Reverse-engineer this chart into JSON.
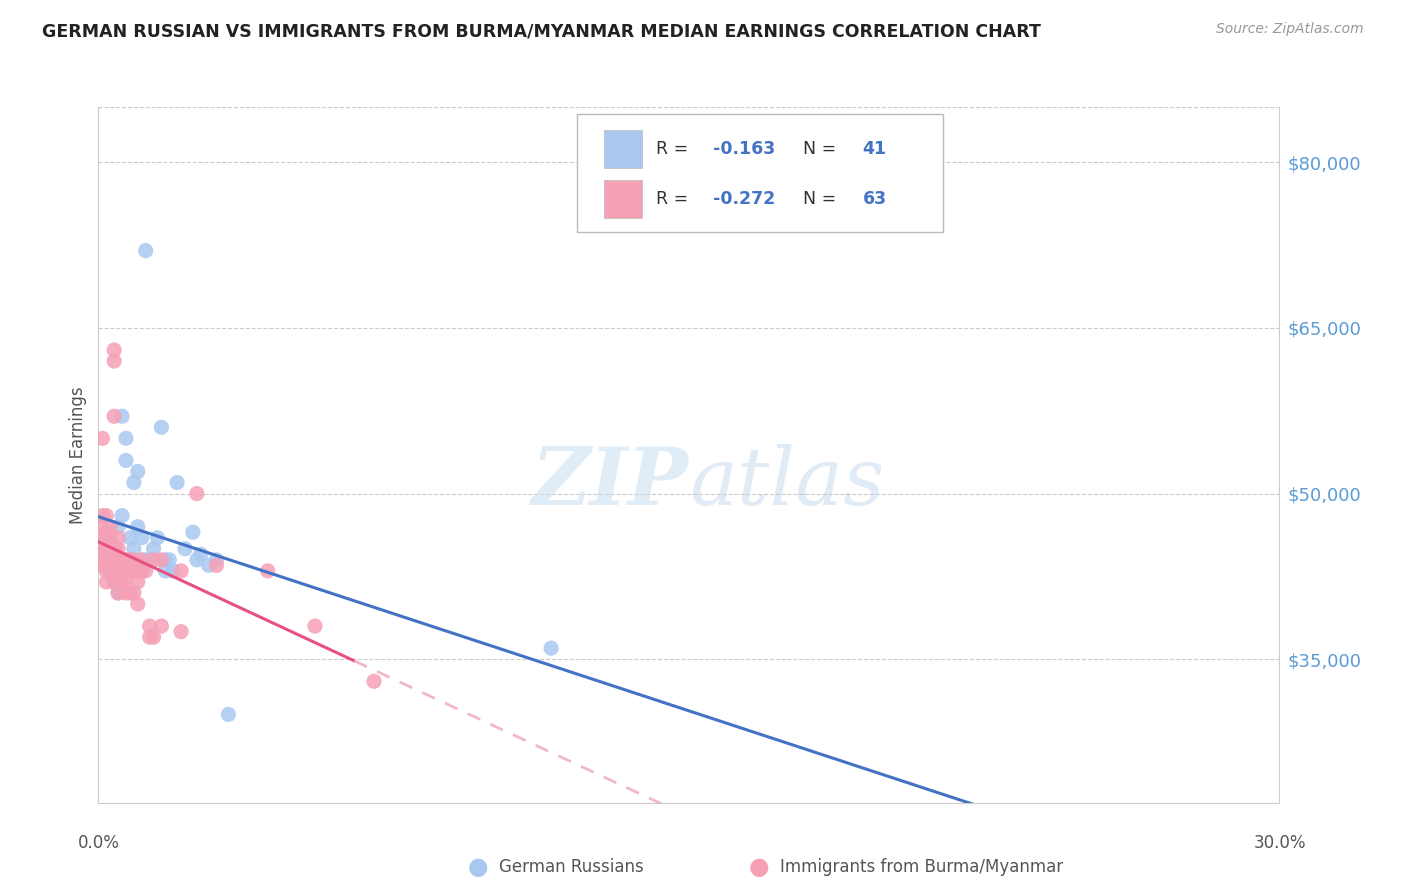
{
  "title": "GERMAN RUSSIAN VS IMMIGRANTS FROM BURMA/MYANMAR MEDIAN EARNINGS CORRELATION CHART",
  "source": "Source: ZipAtlas.com",
  "ylabel": "Median Earnings",
  "ytick_labels": [
    "$35,000",
    "$50,000",
    "$65,000",
    "$80,000"
  ],
  "ytick_values": [
    35000,
    50000,
    65000,
    80000
  ],
  "ylim": [
    22000,
    85000
  ],
  "xlim": [
    0.0,
    0.3
  ],
  "r_blue": -0.163,
  "n_blue": 41,
  "r_pink": -0.272,
  "n_pink": 63,
  "color_blue": "#a8c8f0",
  "color_pink": "#f5a0b5",
  "line_blue": "#4472c4",
  "line_pink": "#e85080",
  "line_pink_dash": "#f0b8c8",
  "blue_scatter": [
    [
      0.001,
      44500
    ],
    [
      0.002,
      46000
    ],
    [
      0.003,
      43000
    ],
    [
      0.003,
      45000
    ],
    [
      0.004,
      42000
    ],
    [
      0.004,
      44000
    ],
    [
      0.005,
      47000
    ],
    [
      0.005,
      43500
    ],
    [
      0.005,
      41000
    ],
    [
      0.006,
      57000
    ],
    [
      0.006,
      48000
    ],
    [
      0.007,
      55000
    ],
    [
      0.007,
      53000
    ],
    [
      0.008,
      46000
    ],
    [
      0.008,
      44000
    ],
    [
      0.009,
      51000
    ],
    [
      0.009,
      45000
    ],
    [
      0.01,
      52000
    ],
    [
      0.01,
      47000
    ],
    [
      0.01,
      43000
    ],
    [
      0.011,
      46000
    ],
    [
      0.011,
      43000
    ],
    [
      0.012,
      44000
    ],
    [
      0.013,
      44000
    ],
    [
      0.014,
      45000
    ],
    [
      0.015,
      46000
    ],
    [
      0.016,
      56000
    ],
    [
      0.017,
      44000
    ],
    [
      0.017,
      43000
    ],
    [
      0.018,
      44000
    ],
    [
      0.019,
      43000
    ],
    [
      0.02,
      51000
    ],
    [
      0.022,
      45000
    ],
    [
      0.024,
      46500
    ],
    [
      0.025,
      44000
    ],
    [
      0.026,
      44500
    ],
    [
      0.028,
      43500
    ],
    [
      0.03,
      44000
    ],
    [
      0.115,
      36000
    ],
    [
      0.033,
      30000
    ],
    [
      0.012,
      72000
    ]
  ],
  "pink_scatter": [
    [
      0.001,
      55000
    ],
    [
      0.001,
      48000
    ],
    [
      0.001,
      47000
    ],
    [
      0.001,
      46000
    ],
    [
      0.001,
      45000
    ],
    [
      0.001,
      44000
    ],
    [
      0.001,
      43500
    ],
    [
      0.002,
      48000
    ],
    [
      0.002,
      46500
    ],
    [
      0.002,
      45000
    ],
    [
      0.002,
      44500
    ],
    [
      0.002,
      43000
    ],
    [
      0.002,
      42000
    ],
    [
      0.003,
      47000
    ],
    [
      0.003,
      46000
    ],
    [
      0.003,
      45000
    ],
    [
      0.003,
      44000
    ],
    [
      0.003,
      43000
    ],
    [
      0.004,
      63000
    ],
    [
      0.004,
      62000
    ],
    [
      0.004,
      57000
    ],
    [
      0.004,
      45000
    ],
    [
      0.004,
      44000
    ],
    [
      0.004,
      43000
    ],
    [
      0.004,
      42000
    ],
    [
      0.005,
      46000
    ],
    [
      0.005,
      45000
    ],
    [
      0.005,
      43000
    ],
    [
      0.005,
      42000
    ],
    [
      0.005,
      41000
    ],
    [
      0.006,
      44000
    ],
    [
      0.006,
      43500
    ],
    [
      0.006,
      42500
    ],
    [
      0.006,
      42000
    ],
    [
      0.007,
      44000
    ],
    [
      0.007,
      43000
    ],
    [
      0.007,
      42000
    ],
    [
      0.007,
      41000
    ],
    [
      0.008,
      44000
    ],
    [
      0.008,
      43000
    ],
    [
      0.008,
      41000
    ],
    [
      0.009,
      44000
    ],
    [
      0.009,
      43000
    ],
    [
      0.009,
      41000
    ],
    [
      0.01,
      43000
    ],
    [
      0.01,
      42000
    ],
    [
      0.01,
      40000
    ],
    [
      0.011,
      44000
    ],
    [
      0.011,
      43000
    ],
    [
      0.012,
      43000
    ],
    [
      0.013,
      38000
    ],
    [
      0.013,
      37000
    ],
    [
      0.014,
      44000
    ],
    [
      0.014,
      37000
    ],
    [
      0.016,
      44000
    ],
    [
      0.016,
      38000
    ],
    [
      0.021,
      43000
    ],
    [
      0.021,
      37500
    ],
    [
      0.025,
      50000
    ],
    [
      0.03,
      43500
    ],
    [
      0.043,
      43000
    ],
    [
      0.055,
      38000
    ],
    [
      0.07,
      33000
    ]
  ],
  "grid_color": "#cccccc",
  "spine_color": "#cccccc",
  "text_color": "#555555",
  "right_axis_color": "#5b9bd5"
}
